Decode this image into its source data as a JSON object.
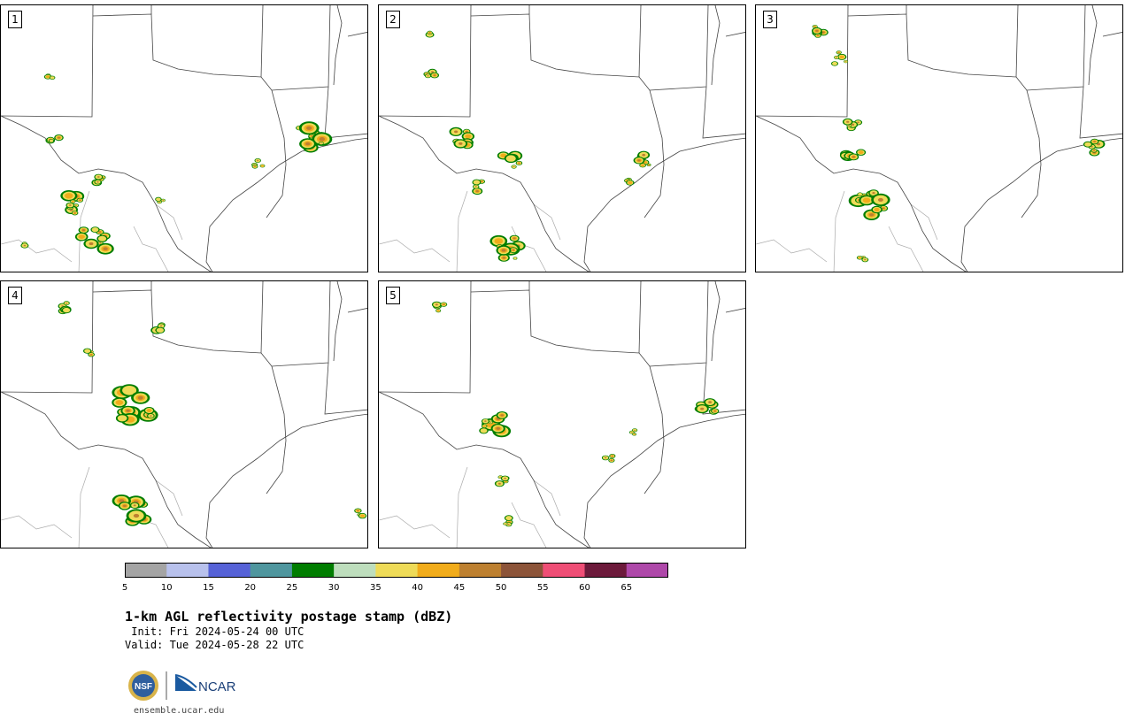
{
  "panels": [
    {
      "label": "1"
    },
    {
      "label": "2"
    },
    {
      "label": "3"
    },
    {
      "label": "4"
    },
    {
      "label": "5"
    }
  ],
  "legend": {
    "colors": [
      "#a4a4a4",
      "#b8c1ec",
      "#5662d7",
      "#4f969e",
      "#007d00",
      "#bedebd",
      "#eedb58",
      "#f1ac1b",
      "#bd8030",
      "#8c5439",
      "#ef4e76",
      "#6c1a3b",
      "#ae48a9"
    ],
    "ticks": [
      "5",
      "10",
      "15",
      "20",
      "25",
      "30",
      "35",
      "40",
      "45",
      "50",
      "55",
      "60",
      "65"
    ]
  },
  "title": "1-km AGL reflectivity postage stamp (dBZ)",
  "init": " Init: Fri 2024-05-24 00 UTC",
  "valid": "Valid: Tue 2024-05-28 22 UTC",
  "logo": {
    "left": "NSF",
    "right": "NCAR"
  },
  "site": "ensemble.ucar.edu"
}
